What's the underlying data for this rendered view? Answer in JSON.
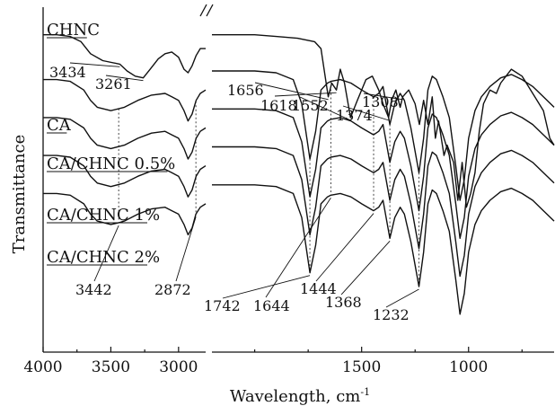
{
  "chart_data": {
    "type": "line",
    "title": "",
    "xlabel": "Wavelength, cm",
    "xlabel_superscript": "-1",
    "ylabel": "Transmittance",
    "x_reversed": true,
    "axis_break": [
      2800,
      2200
    ],
    "x_segments": [
      [
        4000,
        2800
      ],
      [
        2200,
        600
      ]
    ],
    "xticks": [
      4000,
      3500,
      3000,
      1500,
      1000
    ],
    "y_ticks_shown": false,
    "grid": false,
    "legend": "none",
    "series": [
      {
        "name": "CHNC",
        "points": [
          [
            4000,
            92
          ],
          [
            3900,
            92
          ],
          [
            3800,
            91.5
          ],
          [
            3720,
            90
          ],
          [
            3650,
            86.5
          ],
          [
            3560,
            84.5
          ],
          [
            3434,
            83.5
          ],
          [
            3380,
            81.5
          ],
          [
            3320,
            80
          ],
          [
            3261,
            79.5
          ],
          [
            3210,
            82
          ],
          [
            3150,
            85
          ],
          [
            3100,
            86.5
          ],
          [
            3050,
            87
          ],
          [
            3000,
            85.5
          ],
          [
            2960,
            82
          ],
          [
            2930,
            81
          ],
          [
            2900,
            83
          ],
          [
            2870,
            86
          ],
          [
            2840,
            88
          ],
          [
            2800,
            88
          ],
          [
            2200,
            92
          ],
          [
            2000,
            92
          ],
          [
            1900,
            91.5
          ],
          [
            1800,
            91
          ],
          [
            1720,
            90
          ],
          [
            1690,
            88
          ],
          [
            1656,
            74
          ],
          [
            1640,
            78
          ],
          [
            1618,
            76
          ],
          [
            1600,
            82
          ],
          [
            1580,
            78
          ],
          [
            1552,
            68
          ],
          [
            1520,
            73
          ],
          [
            1480,
            79
          ],
          [
            1450,
            80
          ],
          [
            1420,
            76
          ],
          [
            1400,
            72
          ],
          [
            1374,
            68
          ],
          [
            1360,
            73
          ],
          [
            1340,
            76
          ],
          [
            1320,
            71
          ],
          [
            1308,
            74
          ],
          [
            1280,
            76
          ],
          [
            1250,
            72
          ],
          [
            1230,
            66
          ],
          [
            1210,
            73
          ],
          [
            1190,
            66
          ],
          [
            1170,
            74
          ],
          [
            1155,
            62
          ],
          [
            1140,
            67
          ],
          [
            1115,
            57
          ],
          [
            1100,
            60
          ],
          [
            1070,
            55
          ],
          [
            1050,
            44
          ],
          [
            1030,
            55
          ],
          [
            1010,
            42
          ],
          [
            990,
            46
          ],
          [
            970,
            52
          ],
          [
            950,
            64
          ],
          [
            930,
            72
          ],
          [
            900,
            76
          ],
          [
            870,
            75
          ],
          [
            850,
            78
          ],
          [
            800,
            82
          ],
          [
            750,
            80
          ],
          [
            700,
            75
          ],
          [
            650,
            70
          ],
          [
            620,
            62
          ],
          [
            600,
            60
          ]
        ]
      },
      {
        "name": "CA",
        "points": [
          [
            4000,
            79
          ],
          [
            3900,
            79
          ],
          [
            3800,
            78.5
          ],
          [
            3700,
            76
          ],
          [
            3650,
            73
          ],
          [
            3600,
            71
          ],
          [
            3500,
            70
          ],
          [
            3400,
            71
          ],
          [
            3300,
            73
          ],
          [
            3200,
            74.5
          ],
          [
            3100,
            75
          ],
          [
            3050,
            74
          ],
          [
            3000,
            73
          ],
          [
            2960,
            70
          ],
          [
            2930,
            67
          ],
          [
            2900,
            69
          ],
          [
            2870,
            73
          ],
          [
            2840,
            75
          ],
          [
            2800,
            76
          ],
          [
            2200,
            81.5
          ],
          [
            2000,
            81.5
          ],
          [
            1900,
            81
          ],
          [
            1820,
            79
          ],
          [
            1780,
            72
          ],
          [
            1742,
            56
          ],
          [
            1715,
            64
          ],
          [
            1690,
            76
          ],
          [
            1660,
            78
          ],
          [
            1644,
            78.5
          ],
          [
            1600,
            79
          ],
          [
            1550,
            78
          ],
          [
            1500,
            76
          ],
          [
            1444,
            74
          ],
          [
            1420,
            75
          ],
          [
            1400,
            77
          ],
          [
            1368,
            66
          ],
          [
            1345,
            72
          ],
          [
            1320,
            75
          ],
          [
            1300,
            73
          ],
          [
            1270,
            65
          ],
          [
            1232,
            52
          ],
          [
            1210,
            62
          ],
          [
            1190,
            76
          ],
          [
            1170,
            80
          ],
          [
            1150,
            79
          ],
          [
            1120,
            74
          ],
          [
            1090,
            68
          ],
          [
            1060,
            54
          ],
          [
            1040,
            44
          ],
          [
            1020,
            50
          ],
          [
            1000,
            62
          ],
          [
            970,
            70
          ],
          [
            940,
            74
          ],
          [
            900,
            77
          ],
          [
            850,
            79.5
          ],
          [
            800,
            80.5
          ],
          [
            750,
            79
          ],
          [
            700,
            77
          ],
          [
            650,
            74
          ],
          [
            600,
            71
          ]
        ]
      },
      {
        "name": "CA/CHNC 0.5%",
        "points": [
          [
            4000,
            68
          ],
          [
            3900,
            68
          ],
          [
            3800,
            67.5
          ],
          [
            3700,
            65
          ],
          [
            3650,
            62
          ],
          [
            3600,
            60
          ],
          [
            3500,
            59
          ],
          [
            3400,
            60
          ],
          [
            3300,
            62
          ],
          [
            3200,
            63.5
          ],
          [
            3100,
            64
          ],
          [
            3050,
            63
          ],
          [
            3000,
            62
          ],
          [
            2960,
            59
          ],
          [
            2930,
            56
          ],
          [
            2900,
            58
          ],
          [
            2870,
            62
          ],
          [
            2840,
            64
          ],
          [
            2800,
            65
          ],
          [
            2200,
            70.5
          ],
          [
            2000,
            70.5
          ],
          [
            1900,
            70
          ],
          [
            1820,
            68
          ],
          [
            1780,
            61
          ],
          [
            1742,
            45
          ],
          [
            1715,
            53
          ],
          [
            1690,
            65
          ],
          [
            1660,
            67
          ],
          [
            1644,
            67.5
          ],
          [
            1600,
            68
          ],
          [
            1550,
            67
          ],
          [
            1500,
            65
          ],
          [
            1444,
            63
          ],
          [
            1420,
            64
          ],
          [
            1400,
            66
          ],
          [
            1368,
            55
          ],
          [
            1345,
            61
          ],
          [
            1320,
            64
          ],
          [
            1300,
            62
          ],
          [
            1270,
            54
          ],
          [
            1232,
            41
          ],
          [
            1210,
            51
          ],
          [
            1190,
            65
          ],
          [
            1170,
            69
          ],
          [
            1150,
            68
          ],
          [
            1120,
            63
          ],
          [
            1090,
            57
          ],
          [
            1060,
            43
          ],
          [
            1040,
            33
          ],
          [
            1020,
            39
          ],
          [
            1000,
            51
          ],
          [
            970,
            59
          ],
          [
            940,
            63
          ],
          [
            900,
            66
          ],
          [
            850,
            68.5
          ],
          [
            800,
            69.5
          ],
          [
            750,
            68
          ],
          [
            700,
            66
          ],
          [
            650,
            63
          ],
          [
            600,
            60
          ]
        ]
      },
      {
        "name": "CA/CHNC 1%",
        "points": [
          [
            4000,
            57
          ],
          [
            3900,
            57
          ],
          [
            3800,
            56.5
          ],
          [
            3700,
            54
          ],
          [
            3650,
            51
          ],
          [
            3600,
            49
          ],
          [
            3500,
            48
          ],
          [
            3400,
            49
          ],
          [
            3300,
            51
          ],
          [
            3200,
            52.5
          ],
          [
            3100,
            53
          ],
          [
            3050,
            52
          ],
          [
            3000,
            51
          ],
          [
            2960,
            48
          ],
          [
            2930,
            45
          ],
          [
            2900,
            47
          ],
          [
            2870,
            51
          ],
          [
            2840,
            53
          ],
          [
            2800,
            54
          ],
          [
            2200,
            59.5
          ],
          [
            2000,
            59.5
          ],
          [
            1900,
            59
          ],
          [
            1820,
            57
          ],
          [
            1780,
            50
          ],
          [
            1742,
            34
          ],
          [
            1715,
            42
          ],
          [
            1690,
            54
          ],
          [
            1660,
            56
          ],
          [
            1644,
            56.5
          ],
          [
            1600,
            57
          ],
          [
            1550,
            56
          ],
          [
            1500,
            54
          ],
          [
            1444,
            52
          ],
          [
            1420,
            53
          ],
          [
            1400,
            55
          ],
          [
            1368,
            44
          ],
          [
            1345,
            50
          ],
          [
            1320,
            53
          ],
          [
            1300,
            51
          ],
          [
            1270,
            43
          ],
          [
            1232,
            30
          ],
          [
            1210,
            40
          ],
          [
            1190,
            54
          ],
          [
            1170,
            58
          ],
          [
            1150,
            57
          ],
          [
            1120,
            52
          ],
          [
            1090,
            46
          ],
          [
            1060,
            32
          ],
          [
            1040,
            22
          ],
          [
            1020,
            28
          ],
          [
            1000,
            40
          ],
          [
            970,
            48
          ],
          [
            940,
            52
          ],
          [
            900,
            55
          ],
          [
            850,
            57.5
          ],
          [
            800,
            58.5
          ],
          [
            750,
            57
          ],
          [
            700,
            55
          ],
          [
            650,
            52
          ],
          [
            600,
            49
          ]
        ]
      },
      {
        "name": "CA/CHNC 2%",
        "points": [
          [
            4000,
            46
          ],
          [
            3900,
            46
          ],
          [
            3800,
            45.5
          ],
          [
            3700,
            43
          ],
          [
            3650,
            40
          ],
          [
            3600,
            38
          ],
          [
            3500,
            37
          ],
          [
            3442,
            37.5
          ],
          [
            3400,
            38
          ],
          [
            3300,
            40
          ],
          [
            3200,
            41.5
          ],
          [
            3100,
            42
          ],
          [
            3050,
            41
          ],
          [
            3000,
            40
          ],
          [
            2960,
            37
          ],
          [
            2930,
            34
          ],
          [
            2900,
            36
          ],
          [
            2872,
            40
          ],
          [
            2840,
            42
          ],
          [
            2800,
            43
          ],
          [
            2200,
            48.5
          ],
          [
            2000,
            48.5
          ],
          [
            1900,
            48
          ],
          [
            1820,
            46
          ],
          [
            1780,
            39
          ],
          [
            1742,
            23
          ],
          [
            1715,
            31
          ],
          [
            1690,
            43
          ],
          [
            1660,
            45
          ],
          [
            1644,
            45.5
          ],
          [
            1600,
            46
          ],
          [
            1550,
            45
          ],
          [
            1500,
            43
          ],
          [
            1444,
            41
          ],
          [
            1420,
            42
          ],
          [
            1400,
            44
          ],
          [
            1368,
            33
          ],
          [
            1345,
            39
          ],
          [
            1320,
            42
          ],
          [
            1300,
            40
          ],
          [
            1270,
            32
          ],
          [
            1232,
            19
          ],
          [
            1210,
            29
          ],
          [
            1190,
            43
          ],
          [
            1170,
            47
          ],
          [
            1150,
            46
          ],
          [
            1120,
            41
          ],
          [
            1090,
            35
          ],
          [
            1060,
            21
          ],
          [
            1040,
            11
          ],
          [
            1020,
            17
          ],
          [
            1000,
            29
          ],
          [
            970,
            37
          ],
          [
            940,
            41
          ],
          [
            900,
            44
          ],
          [
            850,
            46.5
          ],
          [
            800,
            47.5
          ],
          [
            750,
            46
          ],
          [
            700,
            44
          ],
          [
            650,
            41
          ],
          [
            600,
            38
          ]
        ]
      }
    ],
    "peak_annotations": {
      "CHNC": [
        "3434",
        "3261",
        "1656",
        "1618",
        "1552",
        "1374",
        "1308"
      ],
      "CA/CHNC 2%": [
        "3442",
        "2872",
        "1742",
        "1644",
        "1444",
        "1368",
        "1232"
      ]
    },
    "guide_lines_at": [
      3442,
      2872,
      1742,
      1644,
      1444,
      1368,
      1232
    ]
  }
}
